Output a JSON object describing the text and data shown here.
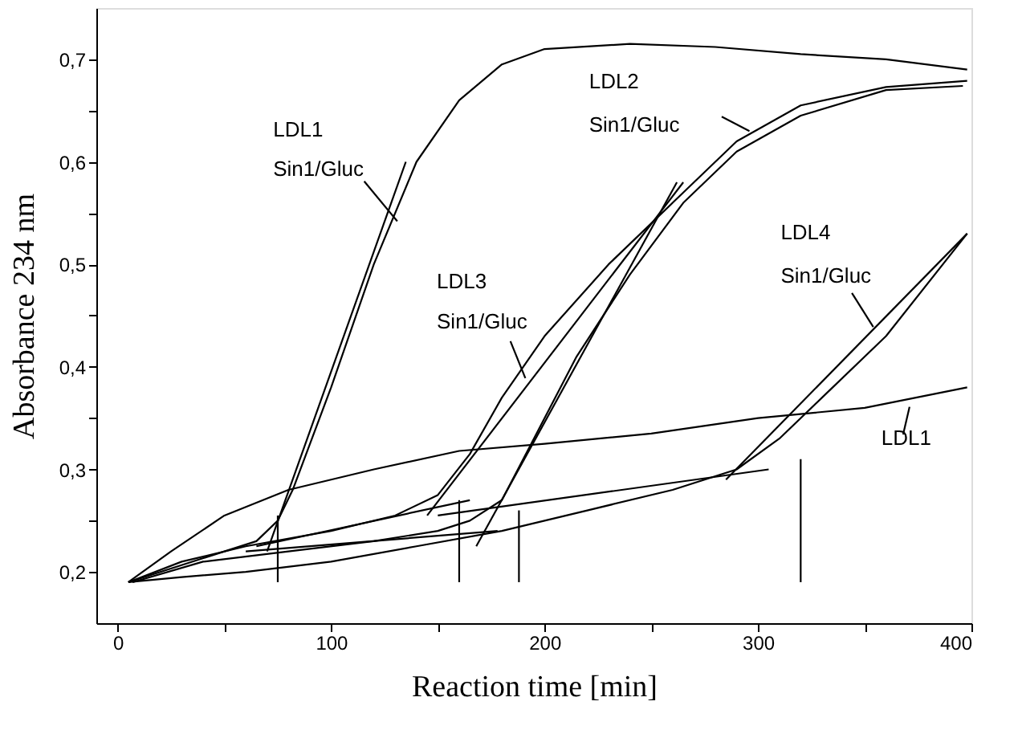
{
  "chart_data": {
    "type": "line",
    "xlabel": "Reaction time [min]",
    "ylabel": "Absorbance 234 nm",
    "xlim": [
      -10,
      400
    ],
    "ylim": [
      0.15,
      0.75
    ],
    "xticks": [
      0,
      {
        "value": 50,
        "label": null
      },
      100,
      {
        "value": 150,
        "label": null
      },
      200,
      {
        "value": 250,
        "label": null
      },
      300,
      {
        "value": 350,
        "label": null
      },
      400
    ],
    "yticks": [
      {
        "value": 0.2,
        "label": "0,2"
      },
      {
        "value": 0.25,
        "label": null
      },
      {
        "value": 0.3,
        "label": "0,3"
      },
      {
        "value": 0.35,
        "label": null
      },
      {
        "value": 0.4,
        "label": "0,4"
      },
      {
        "value": 0.45,
        "label": null
      },
      {
        "value": 0.5,
        "label": "0,5"
      },
      {
        "value": 0.55,
        "label": null
      },
      {
        "value": 0.6,
        "label": "0,6"
      },
      {
        "value": 0.65,
        "label": null
      },
      {
        "value": 0.7,
        "label": "0,7"
      }
    ],
    "grid": false,
    "marker": "none",
    "line_style": "solid",
    "series": [
      {
        "color": "#000000",
        "x": [
          5,
          50,
          65,
          75,
          82,
          100,
          120,
          140,
          160,
          180,
          200,
          240,
          280,
          320,
          360,
          398
        ],
        "values": [
          0.19,
          0.22,
          0.23,
          0.25,
          0.28,
          0.38,
          0.5,
          0.6,
          0.66,
          0.695,
          0.71,
          0.715,
          0.712,
          0.705,
          0.7,
          0.69
        ]
      },
      {
        "color": "#000000",
        "x": [
          5,
          25,
          50,
          80,
          120,
          160,
          200,
          250,
          300,
          350,
          398
        ],
        "values": [
          0.19,
          0.22,
          0.255,
          0.28,
          0.3,
          0.318,
          0.325,
          0.335,
          0.35,
          0.36,
          0.38
        ]
      },
      {
        "color": "#000000",
        "x": [
          5,
          30,
          60,
          100,
          130,
          150,
          165,
          180,
          200,
          230,
          260,
          290,
          320,
          360,
          398
        ],
        "values": [
          0.19,
          0.21,
          0.225,
          0.24,
          0.255,
          0.275,
          0.315,
          0.37,
          0.43,
          0.5,
          0.56,
          0.62,
          0.655,
          0.673,
          0.679
        ]
      },
      {
        "color": "#000000",
        "x": [
          7,
          40,
          80,
          120,
          150,
          165,
          180,
          195,
          215,
          240,
          265,
          290,
          320,
          360,
          396
        ],
        "values": [
          0.19,
          0.21,
          0.22,
          0.23,
          0.24,
          0.25,
          0.27,
          0.33,
          0.41,
          0.49,
          0.56,
          0.61,
          0.645,
          0.67,
          0.674
        ]
      },
      {
        "color": "#000000",
        "x": [
          5,
          30,
          60,
          100,
          140,
          180,
          220,
          260,
          290,
          310,
          330,
          360,
          398
        ],
        "values": [
          0.19,
          0.195,
          0.2,
          0.21,
          0.225,
          0.24,
          0.26,
          0.28,
          0.3,
          0.33,
          0.37,
          0.43,
          0.53
        ]
      },
      {
        "color": "#000000",
        "x": [
          70,
          135
        ],
        "values": [
          0.22,
          0.6
        ]
      },
      {
        "color": "#000000",
        "x": [
          145,
          265
        ],
        "values": [
          0.255,
          0.58
        ]
      },
      {
        "color": "#000000",
        "x": [
          168,
          262
        ],
        "values": [
          0.225,
          0.58
        ]
      },
      {
        "color": "#000000",
        "x": [
          285,
          398
        ],
        "values": [
          0.29,
          0.53
        ]
      },
      {
        "color": "#000000",
        "x": [
          65,
          165
        ],
        "values": [
          0.225,
          0.27
        ]
      },
      {
        "color": "#000000",
        "x": [
          60,
          178
        ],
        "values": [
          0.22,
          0.24
        ]
      },
      {
        "color": "#000000",
        "x": [
          150,
          305
        ],
        "values": [
          0.255,
          0.3
        ]
      },
      {
        "color": "#000000",
        "x": [
          75,
          75
        ],
        "values": [
          0.255,
          0.19
        ]
      },
      {
        "color": "#000000",
        "x": [
          160,
          160
        ],
        "values": [
          0.27,
          0.19
        ]
      },
      {
        "color": "#000000",
        "x": [
          188,
          188
        ],
        "values": [
          0.26,
          0.19
        ]
      },
      {
        "color": "#000000",
        "x": [
          320,
          320
        ],
        "values": [
          0.31,
          0.19
        ]
      },
      {
        "color": "#000000",
        "x": [
          115.5,
          131
        ],
        "values": [
          0.581,
          0.542
        ]
      },
      {
        "color": "#000000",
        "x": [
          283,
          296
        ],
        "values": [
          0.644,
          0.63
        ]
      },
      {
        "color": "#000000",
        "x": [
          184,
          191
        ],
        "values": [
          0.425,
          0.389
        ]
      },
      {
        "color": "#000000",
        "x": [
          344,
          354
        ],
        "values": [
          0.472,
          0.439
        ]
      },
      {
        "color": "#000000",
        "x": [
          371,
          368
        ],
        "values": [
          0.361,
          0.334
        ]
      }
    ],
    "annotations": [
      "LDL1",
      "Sin1/Gluc",
      "LDL2",
      "Sin1/Gluc",
      "LDL3",
      "Sin1/Gluc",
      "LDL4",
      "Sin1/Gluc",
      "LDL1"
    ]
  }
}
